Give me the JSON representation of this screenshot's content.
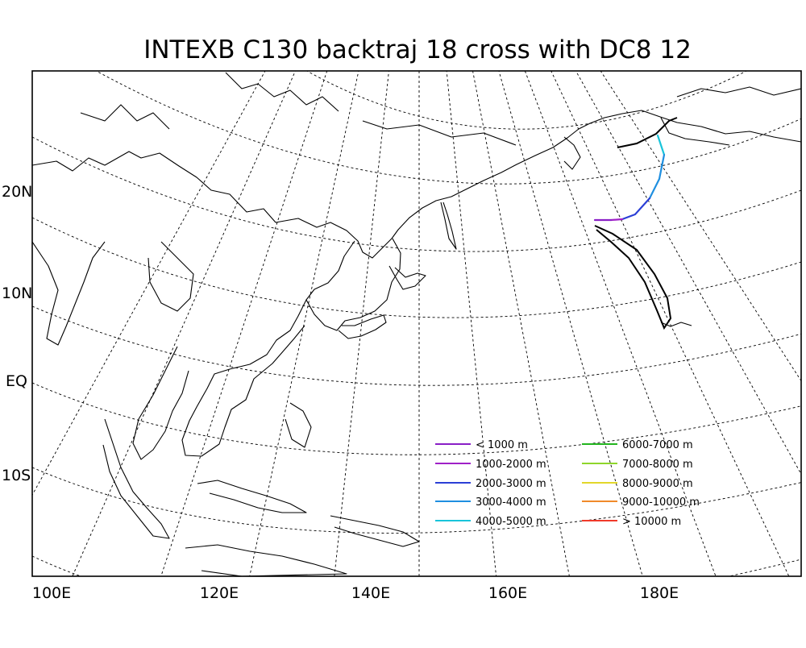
{
  "title": "INTEXB C130 backtraj 18 cross with DC8 12",
  "lat_labels": [
    "20N",
    "10N",
    "EQ",
    "10S"
  ],
  "lon_labels": [
    "100E",
    "120E",
    "140E",
    "160E",
    "180E"
  ],
  "legend": [
    {
      "label": "< 1000 m",
      "color": "#8a1fc6"
    },
    {
      "label": "1000-2000 m",
      "color": "#a020c8"
    },
    {
      "label": "2000-3000 m",
      "color": "#2b3fd6"
    },
    {
      "label": "3000-4000 m",
      "color": "#1f8fe0"
    },
    {
      "label": "4000-5000 m",
      "color": "#19c4da"
    },
    {
      "label": "6000-7000 m",
      "color": "#22b41e"
    },
    {
      "label": "7000-8000 m",
      "color": "#8ed62a"
    },
    {
      "label": "8000-9000 m",
      "color": "#e2d72a"
    },
    {
      "label": "9000-10000 m",
      "color": "#f08a2a"
    },
    {
      "label": "> 10000 m",
      "color": "#f03a2a"
    }
  ],
  "trajectory_colors": {
    "low": "#8a1fc6",
    "mid": "#a020c8",
    "upper": "#2b3fd6",
    "high": "#1f8fe0",
    "top": "#19c4da",
    "flight_track": "#000000"
  }
}
